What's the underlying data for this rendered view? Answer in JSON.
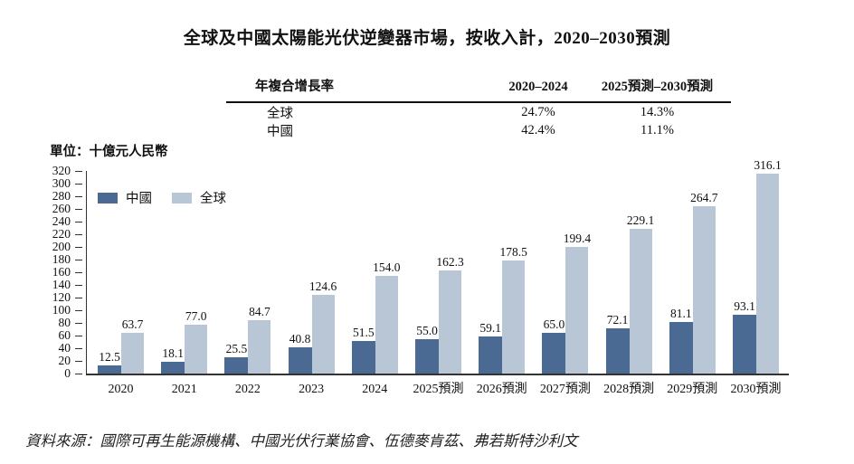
{
  "title": "全球及中國太陽能光伏逆變器市場，按收入計，2020–2030預測",
  "unit_label": "單位：十億元人民幣",
  "source_note": "資料來源：國際可再生能源機構、中國光伏行業協會、伍德麥肯茲、弗若斯特沙利文",
  "cagr_table": {
    "header": {
      "label": "年複合增長率",
      "period1": "2020–2024",
      "period2": "2025預測–2030預測"
    },
    "rows": [
      {
        "label": "全球",
        "period1": "24.7%",
        "period2": "14.3%"
      },
      {
        "label": "中國",
        "period1": "42.4%",
        "period2": "11.1%"
      }
    ]
  },
  "legend": [
    {
      "name": "中國",
      "color": "#4a6a94"
    },
    {
      "name": "全球",
      "color": "#b9c6d6"
    }
  ],
  "chart_data": {
    "type": "bar",
    "title": "全球及中國太陽能光伏逆變器市場，按收入計，2020–2030預測",
    "unit": "十億元人民幣",
    "categories": [
      "2020",
      "2021",
      "2022",
      "2023",
      "2024",
      "2025預測",
      "2026預測",
      "2027預測",
      "2028預測",
      "2029預測",
      "2030預測"
    ],
    "series": [
      {
        "name": "中國",
        "color": "#4a6a94",
        "values": [
          12.5,
          18.1,
          25.5,
          40.8,
          51.5,
          55.0,
          59.1,
          65.0,
          72.1,
          81.1,
          93.1
        ]
      },
      {
        "name": "全球",
        "color": "#b9c6d6",
        "values": [
          63.7,
          77.0,
          84.7,
          124.6,
          154.0,
          162.3,
          178.5,
          199.4,
          229.1,
          264.7,
          316.1
        ]
      }
    ],
    "ylim": [
      0,
      320
    ],
    "ytick_step": 20,
    "grid": false,
    "legend_position": "top-left",
    "value_labels": true
  }
}
